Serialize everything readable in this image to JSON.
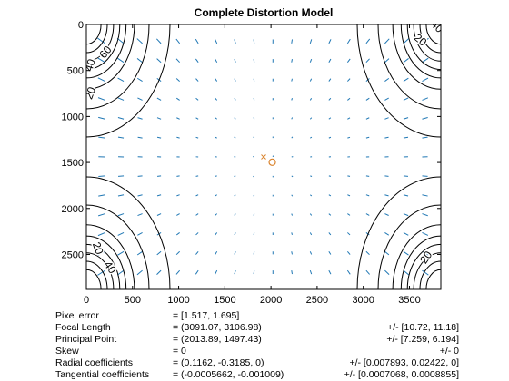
{
  "figure": {
    "title": "Complete Distortion Model"
  },
  "chart_data": {
    "type": "contour",
    "title": "Complete Distortion Model",
    "xlim": [
      0,
      3840
    ],
    "ylim": [
      0,
      2880
    ],
    "y_reversed": true,
    "x_ticks": [
      0,
      500,
      1000,
      1500,
      2000,
      2500,
      3000,
      3500
    ],
    "y_ticks": [
      0,
      500,
      1000,
      1500,
      2000,
      2500
    ],
    "x_tick_labels": [
      "0",
      "500",
      "1000",
      "1500",
      "2000",
      "2500",
      "3000",
      "3500"
    ],
    "y_tick_labels": [
      "0",
      "500",
      "1000",
      "1500",
      "2000",
      "2500"
    ],
    "principal_point": [
      2013.89,
      1497.43
    ],
    "image_center": [
      1920,
      1440
    ],
    "contour_levels": [
      20,
      40,
      60
    ],
    "contour_label_texts": {
      "tl": [
        "20",
        "40",
        "60"
      ],
      "tr": [
        "20",
        "40"
      ],
      "bl": [
        "20",
        "40"
      ],
      "br": [
        "20"
      ]
    },
    "contour_color": "#000000",
    "vector_color": "#1f77b4",
    "marker_color": "#d9822b",
    "grid": false
  },
  "params": [
    {
      "label": "Pixel error",
      "value": "= [1.517, 1.695]",
      "error": ""
    },
    {
      "label": "Focal Length",
      "value": "= (3091.07, 3106.98)",
      "error": "+/- [10.72, 11.18]"
    },
    {
      "label": "Principal Point",
      "value": "= (2013.89, 1497.43)",
      "error": "+/- [7.259, 6.194]"
    },
    {
      "label": "Skew",
      "value": "= 0",
      "error": "+/- 0"
    },
    {
      "label": "Radial coefficients",
      "value": "= (0.1162, -0.3185, 0)",
      "error": "+/- [0.007893, 0.02422, 0]"
    },
    {
      "label": "Tangential coefficients",
      "value": "= (-0.0005662, -0.001009)",
      "error": "+/- [0.0007068, 0.0008855]"
    }
  ]
}
